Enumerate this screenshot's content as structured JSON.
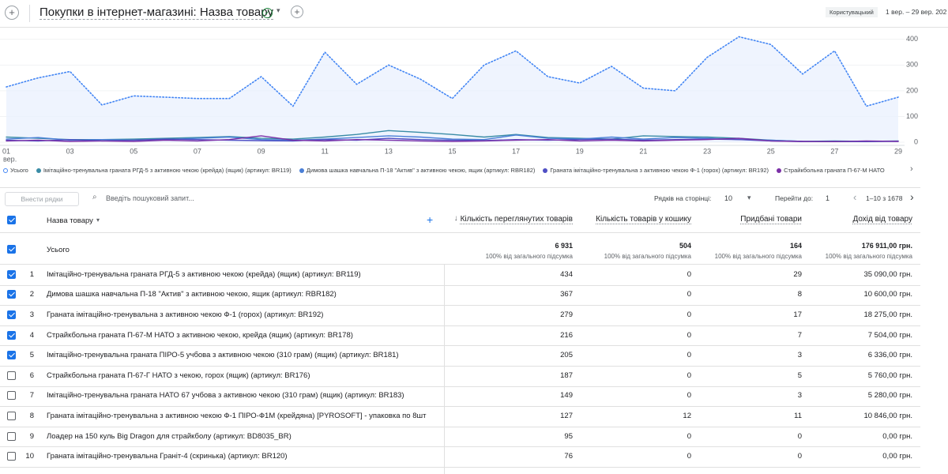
{
  "header": {
    "title": "Покупки в інтернет-магазині: Назва товару",
    "compare_label": "Користувацький",
    "date_range": "1 вер. – 29 вер. 202"
  },
  "chart_data": {
    "type": "line",
    "categories": [
      "01",
      null,
      "03",
      null,
      "05",
      null,
      "07",
      null,
      "09",
      null,
      "11",
      null,
      "13",
      null,
      "15",
      null,
      "17",
      null,
      "19",
      null,
      "21",
      null,
      "23",
      null,
      "25",
      null,
      "27",
      null,
      "29"
    ],
    "x_sublabel": "вер.",
    "ylim": [
      0,
      430
    ],
    "yticks": [
      0,
      100,
      200,
      300,
      400
    ],
    "grid": true,
    "series": [
      {
        "name": "Усього",
        "color": "#4285f4",
        "style": "dotted",
        "fill": "#e8f0fe",
        "values": [
          215,
          250,
          275,
          145,
          180,
          175,
          170,
          170,
          255,
          140,
          350,
          225,
          300,
          245,
          170,
          300,
          355,
          255,
          230,
          295,
          210,
          200,
          330,
          410,
          380,
          265,
          355,
          140,
          175
        ]
      },
      {
        "name": "Імітаційно-тренувальна граната РГД-5 з активною чекою (крейда) (ящик) (артикул: BR119)",
        "color": "#3a8ca6",
        "style": "solid",
        "values": [
          20,
          15,
          10,
          10,
          12,
          15,
          18,
          22,
          15,
          12,
          20,
          30,
          45,
          38,
          30,
          20,
          30,
          18,
          15,
          12,
          25,
          22,
          20,
          15,
          8,
          3,
          5,
          3,
          5
        ]
      },
      {
        "name": "Димова шашка навчальна П-18 \"Актив\" з активною чекою, ящик (артикул: RBR182)",
        "color": "#4a7fd6",
        "style": "solid",
        "values": [
          12,
          18,
          8,
          10,
          8,
          10,
          15,
          20,
          10,
          8,
          12,
          18,
          25,
          20,
          12,
          10,
          28,
          15,
          12,
          20,
          12,
          18,
          15,
          10,
          8,
          3,
          2,
          3,
          3
        ]
      },
      {
        "name": "Граната імітаційно-тренувальна з активною чекою Ф-1 (горох) (артикул: BR192)",
        "color": "#4f4fc4",
        "style": "solid",
        "values": [
          8,
          5,
          10,
          5,
          8,
          12,
          10,
          8,
          6,
          5,
          10,
          8,
          15,
          10,
          8,
          6,
          10,
          8,
          10,
          12,
          8,
          10,
          12,
          10,
          5,
          2,
          3,
          2,
          4
        ]
      },
      {
        "name": "Страйкбольна граната П-67-М НАТО",
        "color": "#7b2fa7",
        "style": "solid",
        "values": [
          5,
          8,
          3,
          5,
          3,
          8,
          5,
          10,
          25,
          8,
          5,
          10,
          8,
          5,
          3,
          5,
          8,
          10,
          5,
          8,
          5,
          8,
          10,
          15,
          5,
          3,
          2,
          5,
          3
        ]
      }
    ]
  },
  "toolbar": {
    "add_rows": "Внести рядки",
    "search_placeholder": "Введіть пошуковий запит...",
    "rows_per_page_label": "Рядків на сторінці:",
    "rows_per_page": 10,
    "go_to_label": "Перейти до:",
    "go_to": 1,
    "pagination": "1–10 з 1678"
  },
  "table": {
    "columns": [
      "Назва товару",
      "Кількість переглянутих товарів",
      "Кількість товарів у кошику",
      "Придбані товари",
      "Дохід від товару"
    ],
    "sort_column": 1,
    "total": {
      "label": "Усього",
      "values": [
        "6 931",
        "504",
        "164",
        "176 911,00 грн."
      ],
      "share": "100% від загального підсумка",
      "selected": true
    },
    "rows": [
      {
        "index": 1,
        "selected": true,
        "name": "Імітаційно-тренувальна граната РГД-5 з активною чекою (крейда) (ящик) (артикул: BR119)",
        "values": [
          434,
          0,
          29,
          "35 090,00 грн."
        ]
      },
      {
        "index": 2,
        "selected": true,
        "name": "Димова шашка навчальна П-18 \"Актив\" з активною чекою, ящик (артикул: RBR182)",
        "values": [
          367,
          0,
          8,
          "10 600,00 грн."
        ]
      },
      {
        "index": 3,
        "selected": true,
        "name": "Граната імітаційно-тренувальна з активною чекою Ф-1 (горох) (артикул: BR192)",
        "values": [
          279,
          0,
          17,
          "18 275,00 грн."
        ]
      },
      {
        "index": 4,
        "selected": true,
        "name": "Страйкбольна граната П-67-М НАТО з активною чекою, крейда (ящик) (артикул: BR178)",
        "values": [
          216,
          0,
          7,
          "7 504,00 грн."
        ]
      },
      {
        "index": 5,
        "selected": true,
        "name": "Імітаційно-тренувальна граната ПІРО-5 учбова з активною чекою (310 грам) (ящик) (артикул: BR181)",
        "values": [
          205,
          0,
          3,
          "6 336,00 грн."
        ]
      },
      {
        "index": 6,
        "selected": false,
        "name": "Страйкбольна граната П-67-Г НАТО з чекою, горох (ящик) (артикул: BR176)",
        "values": [
          187,
          0,
          5,
          "5 760,00 грн."
        ]
      },
      {
        "index": 7,
        "selected": false,
        "name": "Імітаційно-тренувальна граната НАТО 67 учбова з активною чекою (310 грам) (ящик) (артикул: BR183)",
        "values": [
          149,
          0,
          3,
          "5 280,00 грн."
        ]
      },
      {
        "index": 8,
        "selected": false,
        "name": "Граната імітаційно-тренувальна з активною чекою Ф-1 ПІРО-Ф1М (крейдяна) [PYROSOFT] - упаковка по 8шт",
        "values": [
          127,
          12,
          11,
          "10 846,00 грн."
        ]
      },
      {
        "index": 9,
        "selected": false,
        "name": "Лоадер на 150 куль Big Dragon для страйкболу (артикул: BD8035_BR)",
        "values": [
          95,
          0,
          0,
          "0,00 грн."
        ]
      },
      {
        "index": 10,
        "selected": false,
        "name": "Граната імітаційно-тренувальна Граніт-4 (скринька) (артикул: BR120)",
        "values": [
          76,
          0,
          0,
          "0,00 грн."
        ]
      }
    ]
  }
}
